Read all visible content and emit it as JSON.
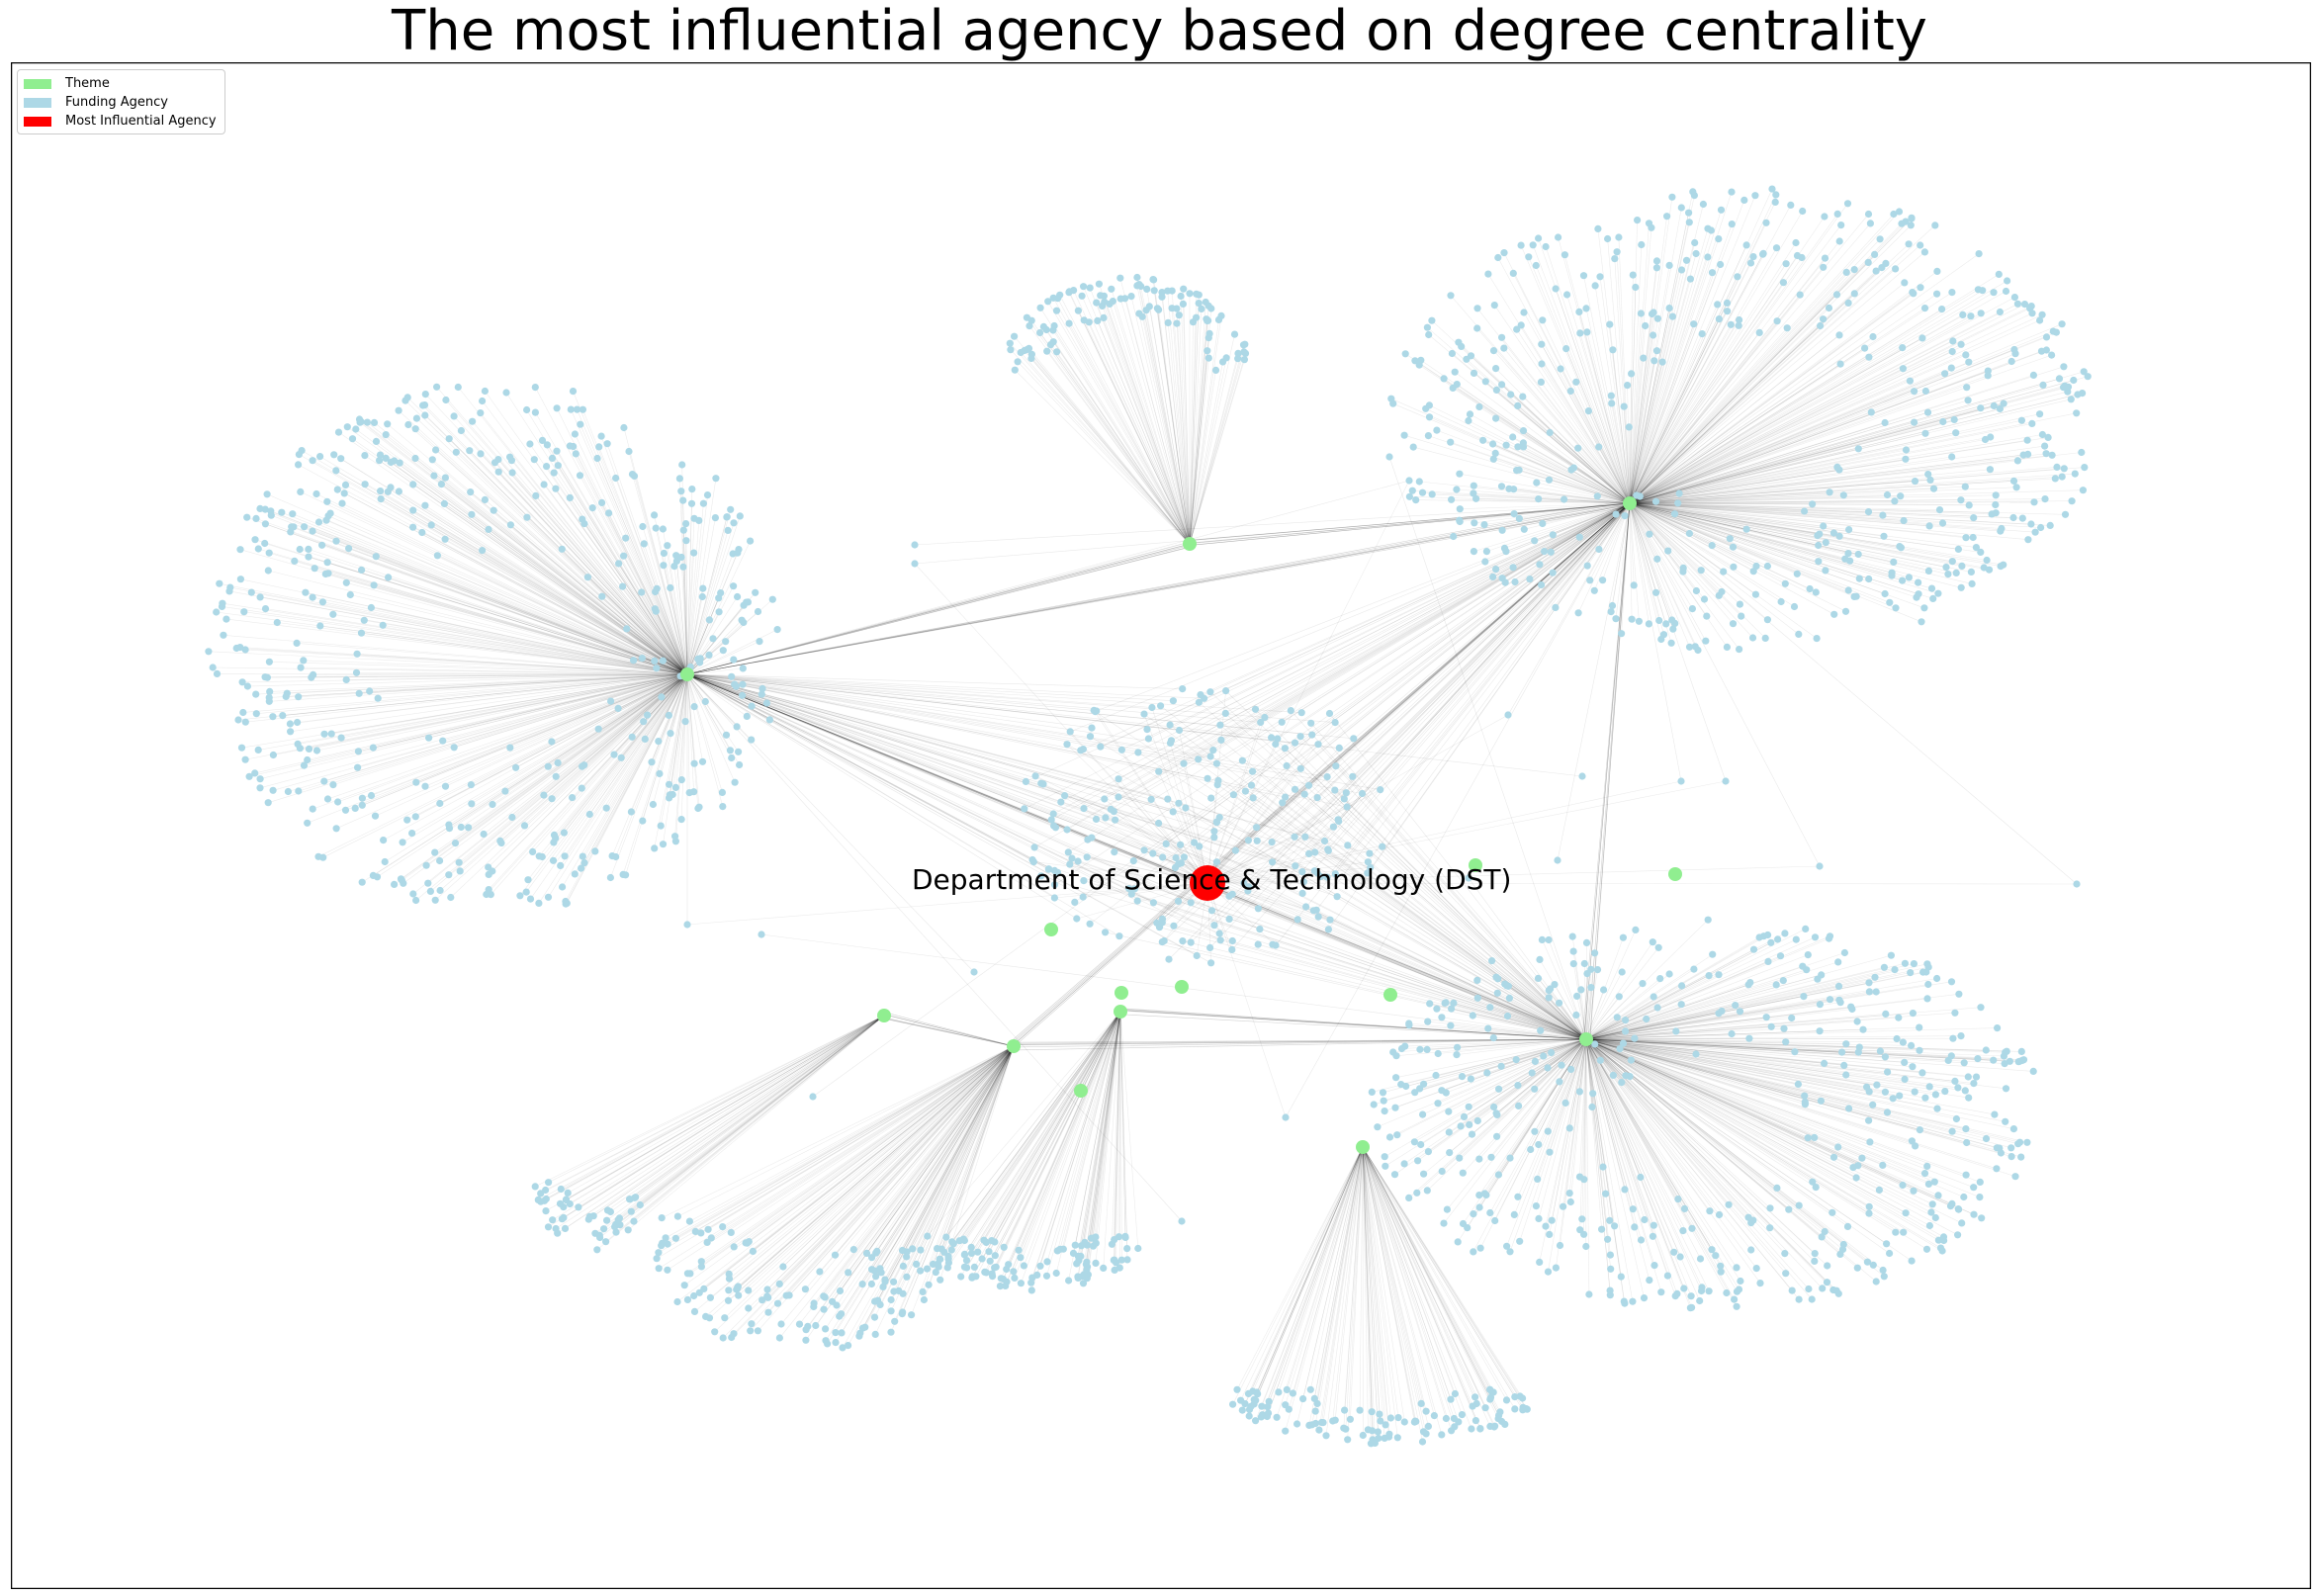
{
  "title": "The most influential agency based on degree centrality",
  "legend": [
    {
      "label": "Theme",
      "color": "#90ee90"
    },
    {
      "label": "Funding Agency",
      "color": "#add8e6"
    },
    {
      "label": "Most Influential Agency",
      "color": "#ff0000"
    }
  ],
  "colors": {
    "theme": "#90ee90",
    "funding_agency": "#add8e6",
    "most_influential": "#ff0000",
    "edge": "#000000"
  },
  "most_influential_agency": "Department of Science & Technology (DST)"
}
